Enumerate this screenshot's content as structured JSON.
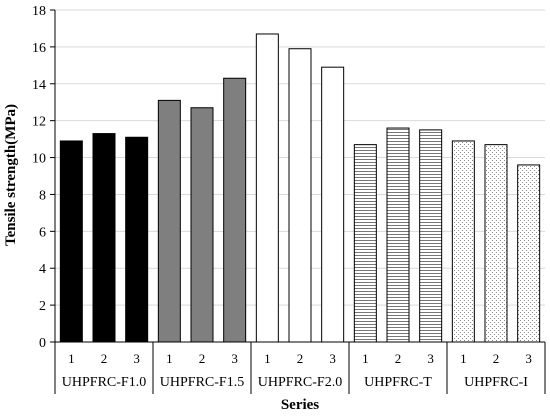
{
  "chart_data": {
    "type": "bar",
    "xlabel": "Series",
    "ylabel": "Tensile strength(MPa)",
    "ylim": [
      0,
      18
    ],
    "yticks": [
      "0",
      "2",
      "4",
      "6",
      "8",
      "10",
      "12",
      "14",
      "16",
      "18"
    ],
    "grid": true,
    "legend": "none",
    "groups": [
      {
        "name": "UHPFRC-F1.0",
        "fill": "solid-black",
        "color": "#000000",
        "bars": [
          "1",
          "2",
          "3"
        ],
        "values": [
          10.9,
          11.3,
          11.1
        ]
      },
      {
        "name": "UHPFRC-F1.5",
        "fill": "solid-gray",
        "color": "#7f7f7f",
        "bars": [
          "1",
          "2",
          "3"
        ],
        "values": [
          13.1,
          12.7,
          14.3
        ]
      },
      {
        "name": "UHPFRC-F2.0",
        "fill": "white",
        "color": "#ffffff",
        "bars": [
          "1",
          "2",
          "3"
        ],
        "values": [
          16.7,
          15.9,
          14.9
        ]
      },
      {
        "name": "UHPFRC-T",
        "fill": "horizontal-lines",
        "color": "#777777",
        "bars": [
          "1",
          "2",
          "3"
        ],
        "values": [
          10.7,
          11.6,
          11.5
        ]
      },
      {
        "name": "UHPFRC-I",
        "fill": "dots",
        "color": "#9a9a9a",
        "bars": [
          "1",
          "2",
          "3"
        ],
        "values": [
          10.9,
          10.7,
          9.6
        ]
      }
    ]
  }
}
